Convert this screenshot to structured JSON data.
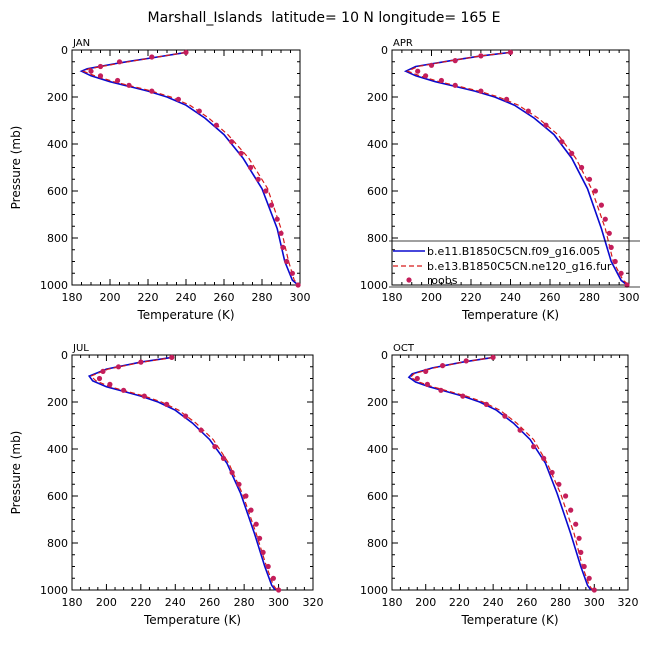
{
  "figure": {
    "title": "Marshall_Islands  latitude= 10 N longitude= 165 E"
  },
  "colors": {
    "series1": "#0a0acf",
    "series2": "#d61a1a",
    "series3": "#c41e5a"
  },
  "chart_data": [
    {
      "type": "line",
      "panel_label": "JAN",
      "xlabel": "Temperature (K)",
      "ylabel": "Pressure (mb)",
      "xlim": [
        180,
        300
      ],
      "ylim": [
        1000,
        0
      ],
      "xticks": [
        "180",
        "200",
        "220",
        "240",
        "260",
        "280",
        "300"
      ],
      "yticks": [
        "0",
        "200",
        "400",
        "600",
        "800",
        "1000"
      ],
      "series": [
        {
          "values": [
            [
              240,
              10
            ],
            [
              225,
              30
            ],
            [
              205,
              55
            ],
            [
              188,
              80
            ],
            [
              185,
              90
            ],
            [
              190,
              110
            ],
            [
              200,
              135
            ],
            [
              210,
              155
            ],
            [
              220,
              175
            ],
            [
              230,
              200
            ],
            [
              240,
              235
            ],
            [
              250,
              290
            ],
            [
              260,
              360
            ],
            [
              270,
              460
            ],
            [
              280,
              590
            ],
            [
              288,
              760
            ],
            [
              292,
              900
            ],
            [
              296,
              980
            ],
            [
              299,
              1000
            ]
          ]
        },
        {
          "values": [
            [
              240,
              10
            ],
            [
              225,
              30
            ],
            [
              206,
              55
            ],
            [
              189,
              80
            ],
            [
              186,
              90
            ],
            [
              192,
              110
            ],
            [
              202,
              135
            ],
            [
              212,
              155
            ],
            [
              222,
              175
            ],
            [
              232,
              200
            ],
            [
              242,
              235
            ],
            [
              252,
              290
            ],
            [
              262,
              360
            ],
            [
              273,
              460
            ],
            [
              283,
              590
            ],
            [
              290,
              760
            ],
            [
              294,
              900
            ],
            [
              297,
              980
            ],
            [
              300,
              1000
            ]
          ]
        },
        {
          "values": [
            [
              240,
              10
            ],
            [
              222,
              30
            ],
            [
              205,
              50
            ],
            [
              195,
              70
            ],
            [
              190,
              90
            ],
            [
              195,
              110
            ],
            [
              204,
              130
            ],
            [
              210,
              150
            ],
            [
              222,
              175
            ],
            [
              236,
              210
            ],
            [
              247,
              260
            ],
            [
              256,
              320
            ],
            [
              264,
              390
            ],
            [
              269,
              440
            ],
            [
              274,
              500
            ],
            [
              278,
              550
            ],
            [
              282,
              600
            ],
            [
              285,
              660
            ],
            [
              288,
              720
            ],
            [
              290,
              780
            ],
            [
              291,
              840
            ],
            [
              293,
              900
            ],
            [
              296,
              950
            ],
            [
              299,
              1000
            ]
          ]
        }
      ]
    },
    {
      "type": "line",
      "panel_label": "APR",
      "xlabel": "Temperature (K)",
      "ylabel": "",
      "xlim": [
        180,
        300
      ],
      "ylim": [
        1000,
        0
      ],
      "xticks": [
        "180",
        "200",
        "220",
        "240",
        "260",
        "280",
        "300"
      ],
      "yticks": [
        "0",
        "200",
        "400",
        "600",
        "800",
        "1000"
      ],
      "legend": [
        "b.e11.B1850C5CN.f09_g16.005",
        "b.e13.B1850C5CN.ne120_g16.fur",
        "roobs"
      ],
      "series": [
        {
          "values": [
            [
              240,
              10
            ],
            [
              225,
              25
            ],
            [
              210,
              45
            ],
            [
              192,
              70
            ],
            [
              187,
              90
            ],
            [
              192,
              110
            ],
            [
              202,
              135
            ],
            [
              212,
              155
            ],
            [
              222,
              175
            ],
            [
              232,
              200
            ],
            [
              242,
              235
            ],
            [
              252,
              290
            ],
            [
              262,
              360
            ],
            [
              271,
              460
            ],
            [
              279,
              590
            ],
            [
              286,
              760
            ],
            [
              291,
              900
            ],
            [
              296,
              980
            ],
            [
              299,
              1000
            ]
          ]
        },
        {
          "values": [
            [
              240,
              10
            ],
            [
              225,
              25
            ],
            [
              210,
              45
            ],
            [
              193,
              70
            ],
            [
              188,
              90
            ],
            [
              194,
              110
            ],
            [
              204,
              135
            ],
            [
              214,
              155
            ],
            [
              224,
              175
            ],
            [
              234,
              200
            ],
            [
              244,
              235
            ],
            [
              254,
              290
            ],
            [
              264,
              360
            ],
            [
              273,
              460
            ],
            [
              281,
              590
            ],
            [
              288,
              760
            ],
            [
              292,
              900
            ],
            [
              297,
              980
            ],
            [
              300,
              1000
            ]
          ]
        },
        {
          "values": [
            [
              240,
              10
            ],
            [
              225,
              25
            ],
            [
              212,
              45
            ],
            [
              200,
              65
            ],
            [
              193,
              90
            ],
            [
              197,
              110
            ],
            [
              205,
              130
            ],
            [
              212,
              150
            ],
            [
              225,
              175
            ],
            [
              238,
              210
            ],
            [
              249,
              260
            ],
            [
              258,
              320
            ],
            [
              266,
              390
            ],
            [
              271,
              440
            ],
            [
              276,
              500
            ],
            [
              280,
              550
            ],
            [
              283,
              600
            ],
            [
              286,
              660
            ],
            [
              288,
              720
            ],
            [
              290,
              780
            ],
            [
              291,
              840
            ],
            [
              293,
              900
            ],
            [
              296,
              950
            ],
            [
              299,
              1000
            ]
          ]
        }
      ]
    },
    {
      "type": "line",
      "panel_label": "JUL",
      "xlabel": "Temperature (K)",
      "ylabel": "Pressure (mb)",
      "xlim": [
        180,
        320
      ],
      "ylim": [
        1000,
        0
      ],
      "xticks": [
        "180",
        "200",
        "220",
        "240",
        "260",
        "280",
        "300",
        "320"
      ],
      "yticks": [
        "0",
        "200",
        "400",
        "600",
        "800",
        "1000"
      ],
      "series": [
        {
          "values": [
            [
              238,
              10
            ],
            [
              220,
              30
            ],
            [
              200,
              60
            ],
            [
              190,
              90
            ],
            [
              192,
              110
            ],
            [
              200,
              135
            ],
            [
              210,
              155
            ],
            [
              220,
              175
            ],
            [
              230,
              200
            ],
            [
              240,
              235
            ],
            [
              250,
              290
            ],
            [
              260,
              360
            ],
            [
              270,
              460
            ],
            [
              278,
              590
            ],
            [
              286,
              760
            ],
            [
              292,
              900
            ],
            [
              296,
              980
            ],
            [
              298,
              1000
            ]
          ]
        },
        {
          "values": [
            [
              239,
              10
            ],
            [
              221,
              30
            ],
            [
              201,
              60
            ],
            [
              191,
              90
            ],
            [
              194,
              110
            ],
            [
              202,
              135
            ],
            [
              212,
              155
            ],
            [
              222,
              175
            ],
            [
              232,
              200
            ],
            [
              242,
              235
            ],
            [
              252,
              290
            ],
            [
              262,
              360
            ],
            [
              271,
              460
            ],
            [
              279,
              590
            ],
            [
              287,
              760
            ],
            [
              293,
              900
            ],
            [
              297,
              980
            ],
            [
              299,
              1000
            ]
          ]
        },
        {
          "values": [
            [
              238,
              10
            ],
            [
              220,
              30
            ],
            [
              207,
              50
            ],
            [
              198,
              70
            ],
            [
              196,
              100
            ],
            [
              202,
              125
            ],
            [
              210,
              150
            ],
            [
              222,
              175
            ],
            [
              235,
              210
            ],
            [
              246,
              260
            ],
            [
              255,
              320
            ],
            [
              263,
              390
            ],
            [
              268,
              440
            ],
            [
              273,
              500
            ],
            [
              277,
              550
            ],
            [
              281,
              600
            ],
            [
              284,
              660
            ],
            [
              287,
              720
            ],
            [
              289,
              780
            ],
            [
              291,
              840
            ],
            [
              294,
              900
            ],
            [
              297,
              950
            ],
            [
              300,
              1000
            ]
          ]
        }
      ]
    },
    {
      "type": "line",
      "panel_label": "OCT",
      "xlabel": "Temperature (K)",
      "ylabel": "",
      "xlim": [
        180,
        320
      ],
      "ylim": [
        1000,
        0
      ],
      "xticks": [
        "180",
        "200",
        "220",
        "240",
        "260",
        "280",
        "300",
        "320"
      ],
      "yticks": [
        "0",
        "200",
        "400",
        "600",
        "800",
        "1000"
      ],
      "series": [
        {
          "values": [
            [
              240,
              10
            ],
            [
              222,
              30
            ],
            [
              204,
              55
            ],
            [
              192,
              80
            ],
            [
              190,
              95
            ],
            [
              194,
              115
            ],
            [
              202,
              135
            ],
            [
              212,
              155
            ],
            [
              222,
              175
            ],
            [
              232,
              200
            ],
            [
              242,
              235
            ],
            [
              252,
              290
            ],
            [
              262,
              360
            ],
            [
              271,
              460
            ],
            [
              278,
              590
            ],
            [
              286,
              760
            ],
            [
              292,
              900
            ],
            [
              296,
              980
            ],
            [
              298,
              1000
            ]
          ]
        },
        {
          "values": [
            [
              240,
              10
            ],
            [
              222,
              30
            ],
            [
              205,
              55
            ],
            [
              193,
              80
            ],
            [
              191,
              95
            ],
            [
              196,
              115
            ],
            [
              204,
              135
            ],
            [
              214,
              155
            ],
            [
              224,
              175
            ],
            [
              234,
              200
            ],
            [
              244,
              235
            ],
            [
              254,
              290
            ],
            [
              264,
              360
            ],
            [
              272,
              460
            ],
            [
              280,
              590
            ],
            [
              288,
              760
            ],
            [
              293,
              900
            ],
            [
              297,
              980
            ],
            [
              299,
              1000
            ]
          ]
        },
        {
          "values": [
            [
              240,
              10
            ],
            [
              224,
              25
            ],
            [
              210,
              45
            ],
            [
              200,
              70
            ],
            [
              195,
              100
            ],
            [
              201,
              125
            ],
            [
              209,
              150
            ],
            [
              222,
              175
            ],
            [
              236,
              210
            ],
            [
              247,
              260
            ],
            [
              256,
              320
            ],
            [
              264,
              390
            ],
            [
              270,
              440
            ],
            [
              275,
              500
            ],
            [
              279,
              550
            ],
            [
              283,
              600
            ],
            [
              286,
              660
            ],
            [
              289,
              720
            ],
            [
              291,
              780
            ],
            [
              292,
              840
            ],
            [
              294,
              900
            ],
            [
              297,
              950
            ],
            [
              300,
              1000
            ]
          ]
        }
      ]
    }
  ]
}
